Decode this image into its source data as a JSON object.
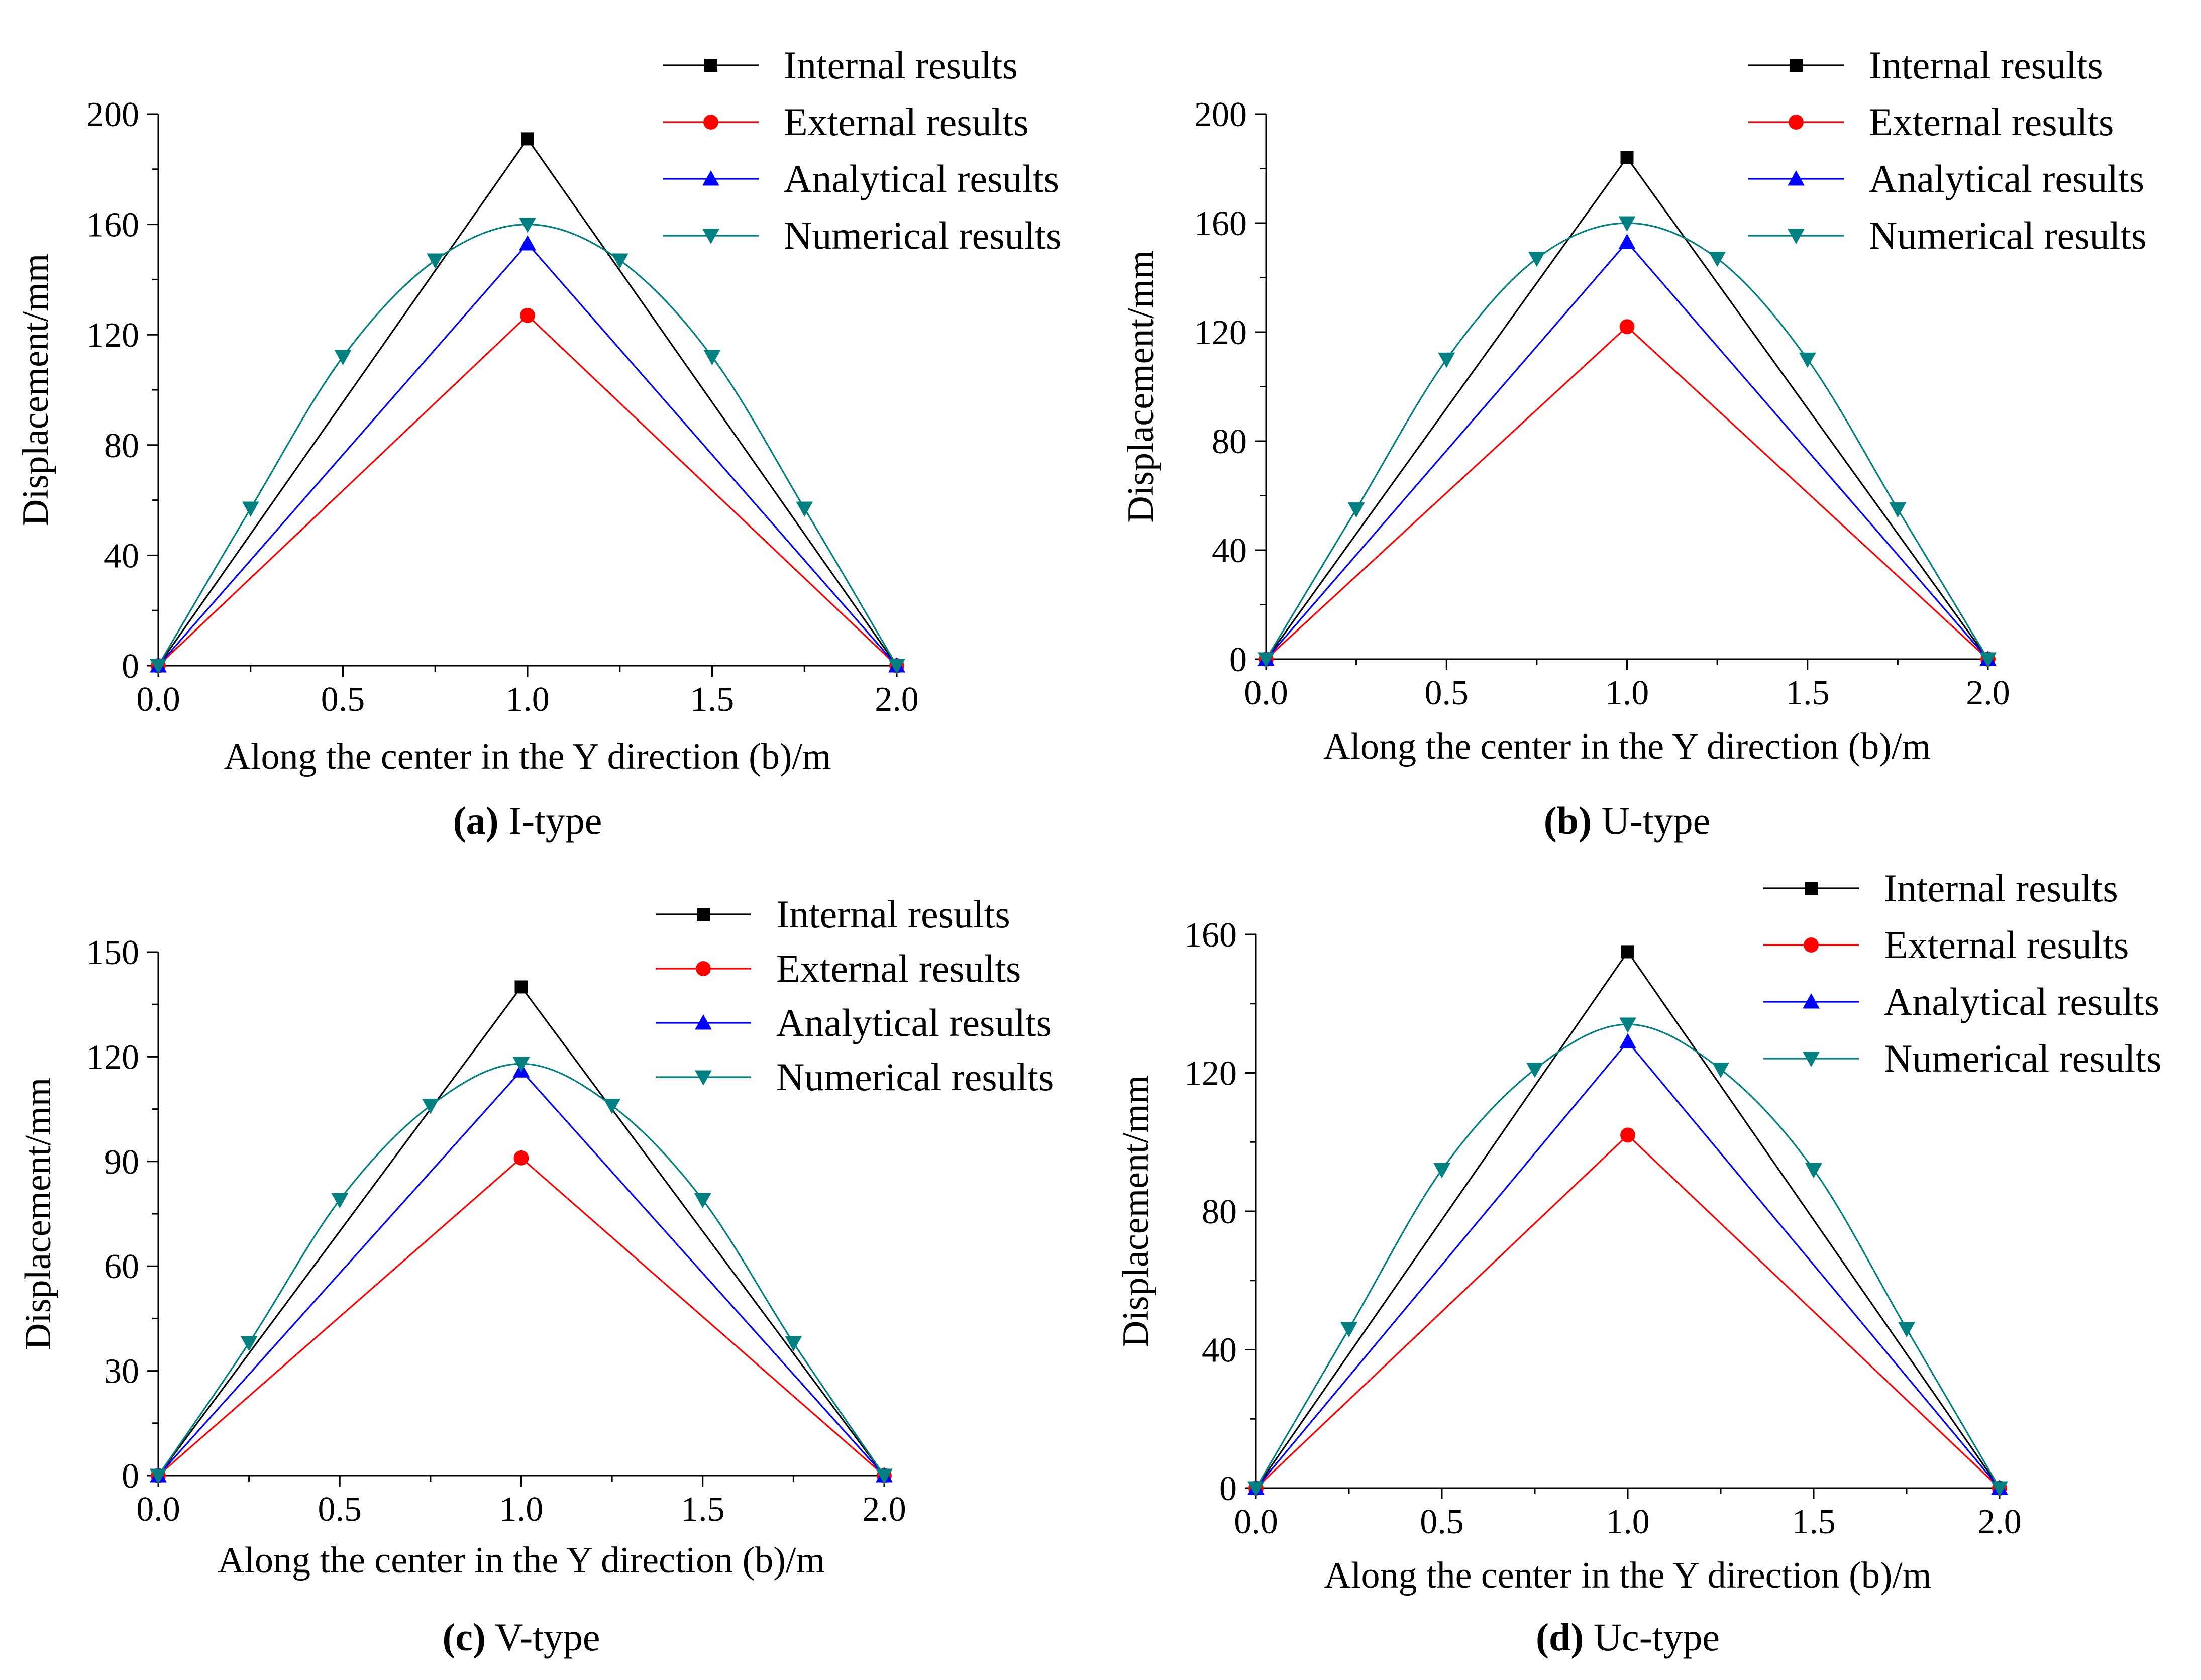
{
  "figure": {
    "legend_labels": [
      "Internal results",
      "External results",
      "Analytical results",
      "Numerical results"
    ]
  },
  "colors": {
    "internal": "#000000",
    "external": "#ff0000",
    "analytical": "#0000ff",
    "numerical": "#008080"
  },
  "chart_data": [
    {
      "id": "a",
      "type": "line",
      "caption_letter": "(a)",
      "caption_text": " I-type",
      "xlabel": "Along the center in the Y direction (b)/m",
      "ylabel": "Displacement/mm",
      "xlim": [
        0,
        2
      ],
      "ylim": [
        0,
        200
      ],
      "xticks": [
        0.0,
        0.5,
        1.0,
        1.5,
        2.0
      ],
      "xtick_labels": [
        "0.0",
        "0.5",
        "1.0",
        "1.5",
        "2.0"
      ],
      "yticks": [
        0,
        40,
        80,
        120,
        160,
        200
      ],
      "ytick_labels": [
        "0",
        "40",
        "80",
        "120",
        "160",
        "200"
      ],
      "legend_position": "top-right",
      "series": [
        {
          "name": "Internal results",
          "marker": "square",
          "smooth": false,
          "x": [
            0,
            1,
            2
          ],
          "y": [
            0,
            191,
            0
          ]
        },
        {
          "name": "External results",
          "marker": "circle",
          "smooth": false,
          "x": [
            0,
            1,
            2
          ],
          "y": [
            0,
            127,
            0
          ]
        },
        {
          "name": "Analytical results",
          "marker": "triangle-up",
          "smooth": false,
          "x": [
            0,
            1,
            2
          ],
          "y": [
            0,
            153,
            0
          ]
        },
        {
          "name": "Numerical results",
          "marker": "triangle-down",
          "smooth": true,
          "x": [
            0,
            0.25,
            0.5,
            0.75,
            1.0,
            1.25,
            1.5,
            1.75,
            2.0
          ],
          "y": [
            0,
            57,
            112,
            147,
            160,
            147,
            112,
            57,
            0
          ]
        }
      ]
    },
    {
      "id": "b",
      "type": "line",
      "caption_letter": "(b)",
      "caption_text": " U-type",
      "xlabel": "Along the center in the Y direction (b)/m",
      "ylabel": "Displacement/mm",
      "xlim": [
        0,
        2
      ],
      "ylim": [
        0,
        200
      ],
      "xticks": [
        0.0,
        0.5,
        1.0,
        1.5,
        2.0
      ],
      "xtick_labels": [
        "0.0",
        "0.5",
        "1.0",
        "1.5",
        "2.0"
      ],
      "yticks": [
        0,
        40,
        80,
        120,
        160,
        200
      ],
      "ytick_labels": [
        "0",
        "40",
        "80",
        "120",
        "160",
        "200"
      ],
      "legend_position": "top-right",
      "series": [
        {
          "name": "Internal results",
          "marker": "square",
          "smooth": false,
          "x": [
            0,
            1,
            2
          ],
          "y": [
            0,
            184,
            0
          ]
        },
        {
          "name": "External results",
          "marker": "circle",
          "smooth": false,
          "x": [
            0,
            1,
            2
          ],
          "y": [
            0,
            122,
            0
          ]
        },
        {
          "name": "Analytical results",
          "marker": "triangle-up",
          "smooth": false,
          "x": [
            0,
            1,
            2
          ],
          "y": [
            0,
            153,
            0
          ]
        },
        {
          "name": "Numerical results",
          "marker": "triangle-down",
          "smooth": true,
          "x": [
            0,
            0.25,
            0.5,
            0.75,
            1.0,
            1.25,
            1.5,
            1.75,
            2.0
          ],
          "y": [
            0,
            55,
            110,
            147,
            160,
            147,
            110,
            55,
            0
          ]
        }
      ]
    },
    {
      "id": "c",
      "type": "line",
      "caption_letter": "(c)",
      "caption_text": " V-type",
      "xlabel": "Along the center in the Y direction (b)/m",
      "ylabel": "Displacement/mm",
      "xlim": [
        0,
        2
      ],
      "ylim": [
        0,
        150
      ],
      "xticks": [
        0.0,
        0.5,
        1.0,
        1.5,
        2.0
      ],
      "xtick_labels": [
        "0.0",
        "0.5",
        "1.0",
        "1.5",
        "2.0"
      ],
      "yticks": [
        0,
        30,
        60,
        90,
        120,
        150
      ],
      "ytick_labels": [
        "0",
        "30",
        "60",
        "90",
        "120",
        "150"
      ],
      "legend_position": "top-right",
      "series": [
        {
          "name": "Internal results",
          "marker": "square",
          "smooth": false,
          "x": [
            0,
            1,
            2
          ],
          "y": [
            0,
            140,
            0
          ]
        },
        {
          "name": "External results",
          "marker": "circle",
          "smooth": false,
          "x": [
            0,
            1,
            2
          ],
          "y": [
            0,
            91,
            0
          ]
        },
        {
          "name": "Analytical results",
          "marker": "triangle-up",
          "smooth": false,
          "x": [
            0,
            1,
            2
          ],
          "y": [
            0,
            116,
            0
          ]
        },
        {
          "name": "Numerical results",
          "marker": "triangle-down",
          "smooth": true,
          "x": [
            0,
            0.25,
            0.5,
            0.75,
            1.0,
            1.25,
            1.5,
            1.75,
            2.0
          ],
          "y": [
            0,
            38,
            79,
            106,
            118,
            106,
            79,
            38,
            0
          ]
        }
      ]
    },
    {
      "id": "d",
      "type": "line",
      "caption_letter": "(d)",
      "caption_text": " Uc-type",
      "xlabel": "Along the center in the Y direction (b)/m",
      "ylabel": "Displacement/mm",
      "xlim": [
        0,
        2
      ],
      "ylim": [
        0,
        160
      ],
      "xticks": [
        0.0,
        0.5,
        1.0,
        1.5,
        2.0
      ],
      "xtick_labels": [
        "0.0",
        "0.5",
        "1.0",
        "1.5",
        "2.0"
      ],
      "yticks": [
        0,
        40,
        80,
        120,
        160
      ],
      "ytick_labels": [
        "0",
        "40",
        "80",
        "120",
        "160"
      ],
      "legend_position": "top-right",
      "series": [
        {
          "name": "Internal results",
          "marker": "square",
          "smooth": false,
          "x": [
            0,
            1,
            2
          ],
          "y": [
            0,
            155,
            0
          ]
        },
        {
          "name": "External results",
          "marker": "circle",
          "smooth": false,
          "x": [
            0,
            1,
            2
          ],
          "y": [
            0,
            102,
            0
          ]
        },
        {
          "name": "Analytical results",
          "marker": "triangle-up",
          "smooth": false,
          "x": [
            0,
            1,
            2
          ],
          "y": [
            0,
            129,
            0
          ]
        },
        {
          "name": "Numerical results",
          "marker": "triangle-down",
          "smooth": true,
          "x": [
            0,
            0.25,
            0.5,
            0.75,
            1.0,
            1.25,
            1.5,
            1.75,
            2.0
          ],
          "y": [
            0,
            46,
            92,
            121,
            134,
            121,
            92,
            46,
            0
          ]
        }
      ]
    }
  ]
}
